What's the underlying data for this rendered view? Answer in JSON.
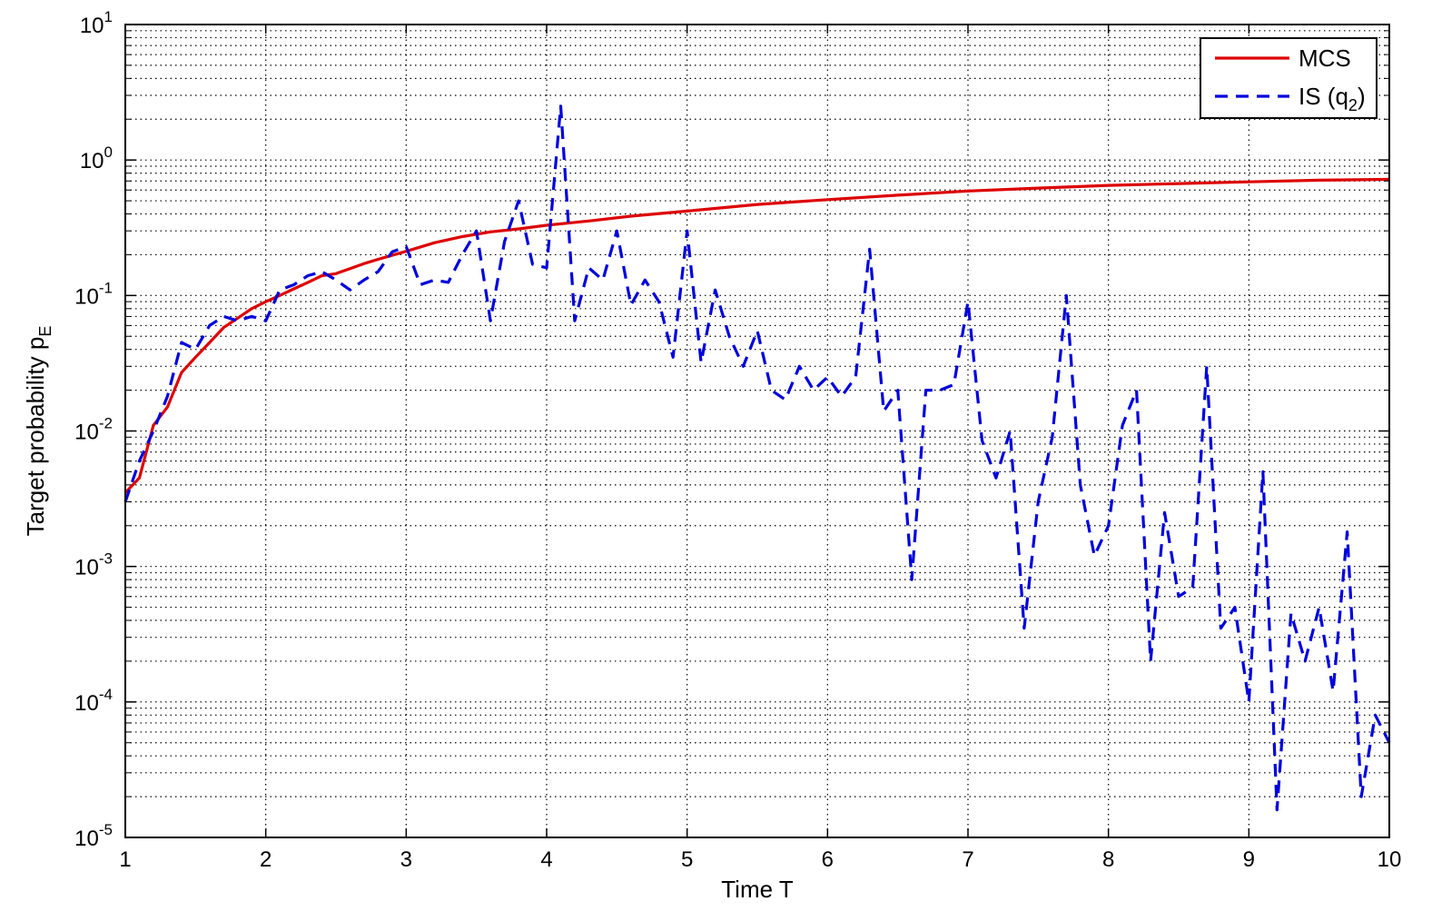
{
  "chart_data": {
    "type": "line",
    "title": "",
    "xlabel": "Time T",
    "ylabel": "Target probability p",
    "ylabel_sub": "E",
    "xlim": [
      1,
      10
    ],
    "ylim": [
      1e-05,
      10
    ],
    "yscale": "log",
    "grid": "on",
    "legend_position": "top-right",
    "xticks": [
      "1",
      "2",
      "3",
      "4",
      "5",
      "6",
      "7",
      "8",
      "9",
      "10"
    ],
    "yticks": [
      {
        "base": "10",
        "exp": "-5"
      },
      {
        "base": "10",
        "exp": "-4"
      },
      {
        "base": "10",
        "exp": "-3"
      },
      {
        "base": "10",
        "exp": "-2"
      },
      {
        "base": "10",
        "exp": "-1"
      },
      {
        "base": "10",
        "exp": "0"
      },
      {
        "base": "10",
        "exp": "1"
      }
    ],
    "series": [
      {
        "name": "MCS",
        "legend_label": "MCS",
        "color": "#dd0000",
        "style": "solid",
        "x": [
          1,
          1.1,
          1.2,
          1.3,
          1.4,
          1.5,
          1.6,
          1.7,
          1.8,
          1.9,
          2,
          2.1,
          2.2,
          2.3,
          2.4,
          2.5,
          2.6,
          2.7,
          2.8,
          2.9,
          3,
          3.2,
          3.4,
          3.6,
          3.8,
          4,
          4.3,
          4.6,
          5,
          5.5,
          6,
          6.5,
          7,
          7.5,
          8,
          8.5,
          9,
          9.5,
          10
        ],
        "y": [
          0.0035,
          0.0045,
          0.011,
          0.015,
          0.027,
          0.035,
          0.045,
          0.058,
          0.068,
          0.08,
          0.09,
          0.1,
          0.112,
          0.125,
          0.14,
          0.145,
          0.158,
          0.172,
          0.185,
          0.198,
          0.212,
          0.245,
          0.272,
          0.295,
          0.31,
          0.33,
          0.355,
          0.385,
          0.42,
          0.47,
          0.51,
          0.55,
          0.59,
          0.62,
          0.65,
          0.67,
          0.69,
          0.71,
          0.72
        ]
      },
      {
        "name": "IS (q2)",
        "legend_label": "IS (q",
        "legend_sub": "2",
        "legend_suffix": ")",
        "color": "#0000dd",
        "style": "dashed",
        "x": [
          1,
          1.1,
          1.2,
          1.3,
          1.4,
          1.5,
          1.6,
          1.7,
          1.8,
          1.9,
          2,
          2.1,
          2.2,
          2.3,
          2.4,
          2.5,
          2.6,
          2.7,
          2.8,
          2.9,
          3,
          3.1,
          3.2,
          3.3,
          3.4,
          3.5,
          3.6,
          3.7,
          3.8,
          3.9,
          4,
          4.1,
          4.2,
          4.3,
          4.4,
          4.5,
          4.6,
          4.7,
          4.8,
          4.9,
          5,
          5.1,
          5.2,
          5.3,
          5.4,
          5.5,
          5.6,
          5.7,
          5.8,
          5.9,
          6,
          6.1,
          6.2,
          6.3,
          6.4,
          6.5,
          6.6,
          6.7,
          6.8,
          6.9,
          7,
          7.1,
          7.2,
          7.3,
          7.4,
          7.5,
          7.6,
          7.7,
          7.8,
          7.9,
          8,
          8.1,
          8.2,
          8.3,
          8.4,
          8.5,
          8.6,
          8.7,
          8.8,
          8.9,
          9,
          9.1,
          9.2,
          9.3,
          9.4,
          9.5,
          9.6,
          9.7,
          9.8,
          9.9,
          10
        ],
        "y": [
          0.003,
          0.006,
          0.01,
          0.018,
          0.045,
          0.04,
          0.06,
          0.07,
          0.065,
          0.07,
          0.065,
          0.11,
          0.12,
          0.14,
          0.15,
          0.13,
          0.11,
          0.13,
          0.15,
          0.21,
          0.23,
          0.12,
          0.13,
          0.125,
          0.2,
          0.3,
          0.065,
          0.25,
          0.5,
          0.17,
          0.16,
          2.5,
          0.065,
          0.16,
          0.13,
          0.3,
          0.085,
          0.13,
          0.09,
          0.035,
          0.3,
          0.032,
          0.11,
          0.05,
          0.03,
          0.055,
          0.02,
          0.017,
          0.03,
          0.02,
          0.025,
          0.018,
          0.025,
          0.22,
          0.014,
          0.02,
          0.0008,
          0.02,
          0.02,
          0.022,
          0.09,
          0.0085,
          0.0045,
          0.01,
          0.00035,
          0.003,
          0.009,
          0.1,
          0.004,
          0.0012,
          0.002,
          0.011,
          0.02,
          0.0002,
          0.0025,
          0.0006,
          0.0007,
          0.03,
          0.00035,
          0.0005,
          0.0001,
          0.005,
          1.6e-05,
          0.00045,
          0.0002,
          0.0005,
          0.00012,
          0.0018,
          2e-05,
          8e-05,
          5e-05
        ]
      }
    ]
  }
}
